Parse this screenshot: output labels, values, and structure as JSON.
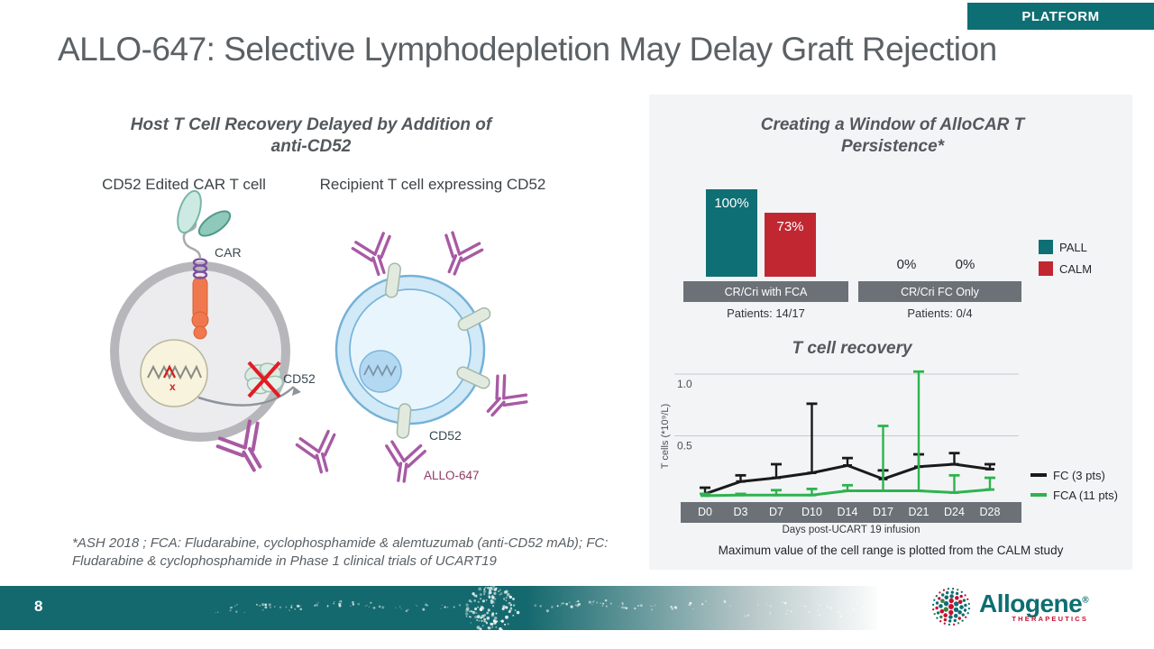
{
  "slide": {
    "badge": "PLATFORM",
    "title": "ALLO-647: Selective Lymphodepletion May Delay Graft Rejection",
    "page_number": "8",
    "footnote": "*ASH 2018 ; FCA:  Fludarabine, cyclophosphamide & alemtuzumab (anti-CD52 mAb); FC:\nFludarabine & cyclophosphamide in Phase 1 clinical trials of UCART19"
  },
  "left_panel": {
    "heading": "Host T Cell Recovery Delayed by Addition of\nanti-CD52",
    "label_car_cell": "CD52 Edited CAR T cell",
    "label_recipient_cell": "Recipient T cell expressing CD52",
    "diagram_labels": {
      "car": "CAR",
      "cd52_left": "CD52",
      "cd52_right": "CD52",
      "allo647": "ALLO-647"
    }
  },
  "right_panel": {
    "heading": "Creating a Window of AlloCAR T\nPersistence*"
  },
  "logo": {
    "name": "Allogene",
    "registered": "®",
    "sub": "THERAPEUTICS"
  },
  "colors": {
    "teal": "#0D6E73",
    "red": "#C12730",
    "green": "#2EB34F",
    "gray_bar": "#6B7177",
    "panel_bg": "#F3F4F6"
  },
  "chart_data": [
    {
      "type": "bar",
      "title": "",
      "categories": [
        "CR/Cri with FCA",
        "CR/Cri FC Only"
      ],
      "category_sublabels": [
        "Patients: 14/17",
        "Patients: 0/4"
      ],
      "series": [
        {
          "name": "PALL",
          "color": "#0E6F74",
          "values": [
            100,
            0
          ],
          "labels": [
            "100%",
            "0%"
          ]
        },
        {
          "name": "CALM",
          "color": "#C12730",
          "values": [
            73,
            0
          ],
          "labels": [
            "73%",
            "0%"
          ]
        }
      ],
      "ylim": [
        0,
        100
      ],
      "grid": false,
      "legend_position": "right"
    },
    {
      "type": "line",
      "title": "T cell recovery",
      "x": [
        "D0",
        "D3",
        "D7",
        "D10",
        "D14",
        "D17",
        "D21",
        "D24",
        "D28"
      ],
      "xlabel": "Days post-UCART 19 infusion",
      "ylabel": "T cells (*10⁹/L)",
      "ylim": [
        0,
        1.1
      ],
      "yticks": [
        1.0,
        0.5
      ],
      "grid": true,
      "legend_position": "right",
      "series": [
        {
          "name": "FC (3 pts)",
          "color": "#1A1A1A",
          "values": [
            0.03,
            0.13,
            0.16,
            0.2,
            0.26,
            0.15,
            0.25,
            0.27,
            0.23
          ],
          "upper": [
            0.08,
            0.18,
            0.27,
            0.76,
            0.32,
            0.22,
            0.35,
            0.36,
            0.27
          ]
        },
        {
          "name": "FCA (11 pts)",
          "color": "#2EB34F",
          "values": [
            0.015,
            0.02,
            0.02,
            0.02,
            0.055,
            0.055,
            0.055,
            0.04,
            0.065
          ],
          "upper": [
            0.03,
            0.03,
            0.06,
            0.07,
            0.1,
            0.58,
            1.02,
            0.18,
            0.16
          ]
        }
      ],
      "note": "Maximum value of the cell range is plotted from the CALM study"
    }
  ]
}
